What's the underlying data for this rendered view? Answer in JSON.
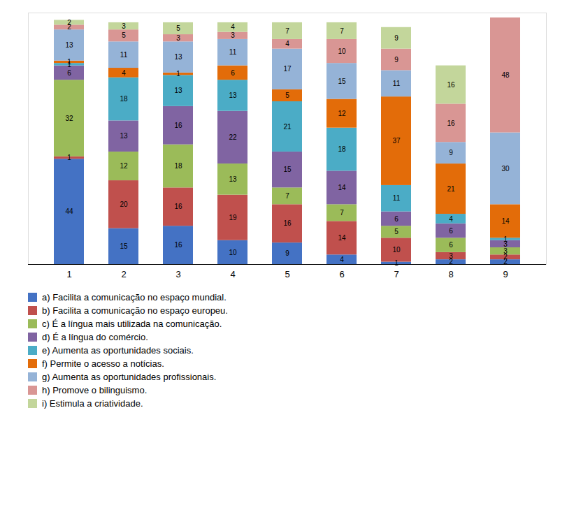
{
  "chart_data": {
    "type": "bar",
    "stacked": true,
    "data_labels": true,
    "tick_labels": "x",
    "grid": false,
    "legend": "lower left",
    "categories": [
      "1",
      "2",
      "3",
      "4",
      "5",
      "6",
      "7",
      "8",
      "9"
    ],
    "ylim": [
      0,
      105.06
    ],
    "series": [
      {
        "name": "a) Facilita a comunicação no espaço mundial.",
        "color": "#4472C4",
        "values": [
          44,
          15,
          16,
          10,
          9,
          4,
          1,
          2,
          2
        ]
      },
      {
        "name": "b) Facilita a comunicação no espaço europeu.",
        "color": "#C0504D",
        "values": [
          1,
          20,
          16,
          19,
          16,
          14,
          10,
          3,
          2
        ]
      },
      {
        "name": "c) É a língua mais utilizada na comunicação.",
        "color": "#9BBB59",
        "values": [
          32,
          12,
          18,
          13,
          7,
          7,
          5,
          6,
          3
        ]
      },
      {
        "name": "d) É a língua do comércio.",
        "color": "#8064A2",
        "values": [
          6,
          13,
          16,
          22,
          15,
          14,
          6,
          6,
          3
        ]
      },
      {
        "name": "e) Aumenta as oportunidades sociais.",
        "color": "#4BACC6",
        "values": [
          1,
          18,
          13,
          13,
          21,
          18,
          11,
          4,
          1
        ]
      },
      {
        "name": "f) Permite o acesso a notícias.",
        "color": "#E36C09",
        "values": [
          1,
          4,
          1,
          6,
          5,
          12,
          37,
          21,
          14
        ]
      },
      {
        "name": "g) Aumenta as oportunidades profissionais.",
        "color": "#95B3D7",
        "values": [
          13,
          11,
          13,
          11,
          17,
          15,
          11,
          9,
          30
        ]
      },
      {
        "name": "h) Promove o bilinguismo.",
        "color": "#D99694",
        "values": [
          2,
          5,
          3,
          3,
          4,
          10,
          9,
          16,
          48
        ]
      },
      {
        "name": "i) Estimula a criatividade.",
        "color": "#C3D69B",
        "values": [
          2,
          3,
          5,
          4,
          7,
          7,
          9,
          16,
          0
        ]
      }
    ]
  }
}
